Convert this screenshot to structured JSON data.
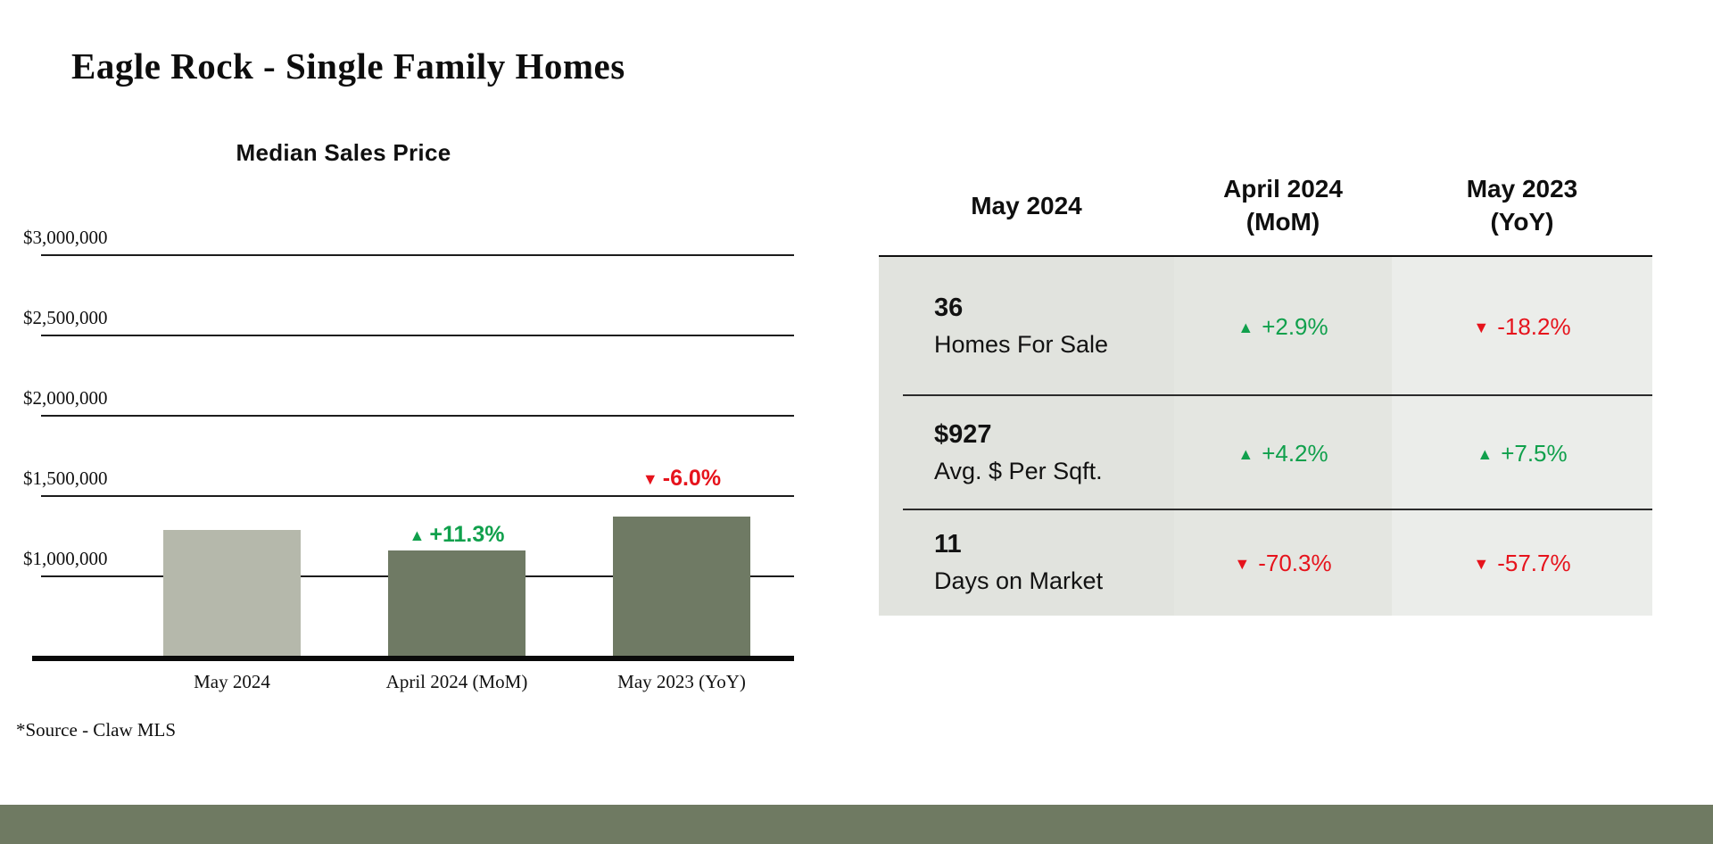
{
  "page": {
    "title": "Eagle Rock - Single Family Homes",
    "source_note": "*Source - Claw MLS"
  },
  "colors": {
    "accent_green": "#10a04c",
    "accent_red": "#e6131c",
    "bar_light": "#b5b8ab",
    "bar_dark": "#6f7a64",
    "footer_bar": "#6f7a62",
    "table_col1_bg": "#e1e3de",
    "table_col2_bg": "#e4e6e1",
    "table_col3_bg": "#ebedea"
  },
  "chart_data": {
    "type": "bar",
    "title": "Median Sales Price",
    "categories": [
      "May 2024",
      "April 2024 (MoM)",
      "May 2023 (YoY)"
    ],
    "values": [
      1285000,
      1155000,
      1368000
    ],
    "bar_colors": [
      "#b5b8ab",
      "#6f7a64",
      "#6f7a64"
    ],
    "ylim": [
      500000,
      3000000
    ],
    "grid": true,
    "yticks": [
      {
        "label": "$3,000,000",
        "value": 3000000
      },
      {
        "label": "$2,500,000",
        "value": 2500000
      },
      {
        "label": "$2,000,000",
        "value": 2000000
      },
      {
        "label": "$1,500,000",
        "value": 1500000
      },
      {
        "label": "$1,000,000",
        "value": 1000000
      }
    ],
    "annotations": [
      {
        "bar": "April 2024 (MoM)",
        "arrow": "▲",
        "text": "+11.3%",
        "color": "green"
      },
      {
        "bar": "May 2023 (YoY)",
        "arrow": "▼",
        "text": "-6.0%",
        "color": "red"
      }
    ]
  },
  "table": {
    "headers": [
      {
        "line1": "May 2024",
        "line2": ""
      },
      {
        "line1": "April 2024",
        "line2": "(MoM)"
      },
      {
        "line1": "May 2023",
        "line2": "(YoY)"
      }
    ],
    "rows": [
      {
        "value": "36",
        "label": "Homes For Sale",
        "mom": {
          "dir": "up",
          "arrow": "▲",
          "text": "+2.9%"
        },
        "yoy": {
          "dir": "down",
          "arrow": "▼",
          "text": "-18.2%"
        }
      },
      {
        "value": "$927",
        "label": "Avg. $ Per Sqft.",
        "mom": {
          "dir": "up",
          "arrow": "▲",
          "text": "+4.2%"
        },
        "yoy": {
          "dir": "up",
          "arrow": "▲",
          "text": "+7.5%"
        }
      },
      {
        "value": "11",
        "label": "Days on Market",
        "mom": {
          "dir": "down",
          "arrow": "▼",
          "text": "-70.3%"
        },
        "yoy": {
          "dir": "down",
          "arrow": "▼",
          "text": "-57.7%"
        }
      }
    ]
  }
}
